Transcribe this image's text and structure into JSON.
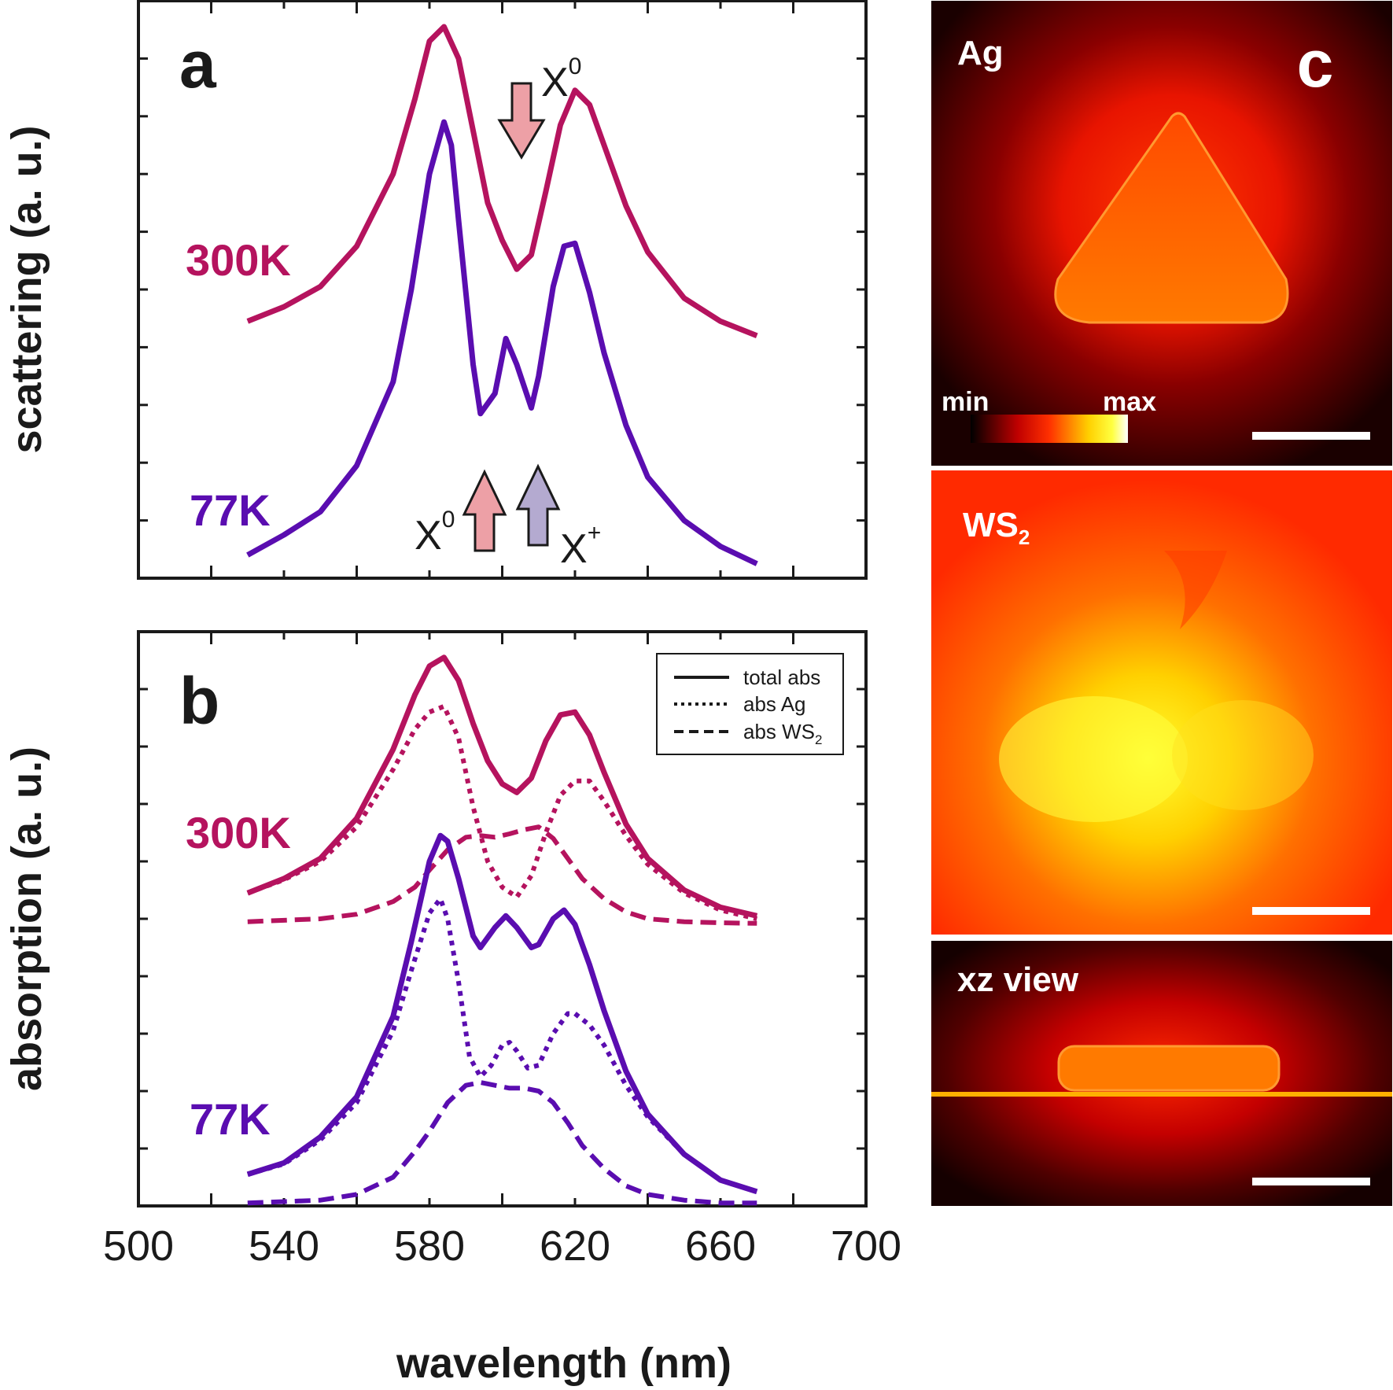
{
  "colors": {
    "t300": "#b5135e",
    "t77": "#5a0db0",
    "x0_arrow": "#eda0a6",
    "xplus_arrow": "#b4aad0",
    "frame": "#1a1a1a"
  },
  "panels": {
    "a": {
      "letter": "a",
      "ylabel": "scattering (a. u.)",
      "label_300": "300K",
      "label_77": "77K",
      "annotations": [
        {
          "text": "X",
          "sup": "0",
          "x": 604,
          "direction": "down",
          "color": "x0_arrow",
          "target": "300K dip"
        },
        {
          "text": "X",
          "sup": "0",
          "x": 596,
          "direction": "up",
          "color": "x0_arrow",
          "target": "77K dip"
        },
        {
          "text": "X",
          "sup": "+",
          "x": 609,
          "direction": "up",
          "color": "xplus_arrow",
          "target": "77K dip"
        }
      ]
    },
    "b": {
      "letter": "b",
      "ylabel": "absorption (a. u.)",
      "label_300": "300K",
      "label_77": "77K",
      "legend": [
        {
          "label": "total abs",
          "style": "solid"
        },
        {
          "label": "abs Ag",
          "style": "dotted"
        },
        {
          "label": "abs WS",
          "sub": "2",
          "style": "dashed"
        }
      ]
    },
    "c": {
      "letter": "c",
      "maps": [
        {
          "label": "Ag",
          "sub": "",
          "icon": "triangle-nanoprism-field-map"
        },
        {
          "label": "WS",
          "sub": "2",
          "icon": "ws2-field-map"
        },
        {
          "label": "xz view",
          "sub": "",
          "icon": "cross-section-field-map"
        }
      ],
      "colorbar": {
        "min": "min",
        "max": "max"
      }
    }
  },
  "xaxis": {
    "label": "wavelength (nm)",
    "ticks": [
      "500",
      "540",
      "580",
      "620",
      "660",
      "700"
    ]
  },
  "chart_data": [
    {
      "type": "line",
      "panel": "a",
      "ylabel": "scattering (a. u.)",
      "xlabel": "wavelength (nm)",
      "xlim": [
        500,
        700
      ],
      "ylim": [
        0,
        10
      ],
      "series": [
        {
          "name": "300K",
          "style": "solid",
          "x": [
            530,
            540,
            550,
            560,
            570,
            576,
            580,
            584,
            588,
            592,
            596,
            600,
            604,
            608,
            612,
            616,
            620,
            624,
            628,
            634,
            640,
            650,
            660,
            670
          ],
          "y": [
            4.45,
            4.7,
            5.05,
            5.75,
            7.0,
            8.3,
            9.3,
            9.55,
            9.0,
            7.75,
            6.5,
            5.85,
            5.35,
            5.6,
            6.7,
            7.85,
            8.45,
            8.2,
            7.5,
            6.45,
            5.65,
            4.85,
            4.45,
            4.2
          ]
        },
        {
          "name": "77K",
          "style": "solid",
          "x": [
            530,
            540,
            550,
            560,
            570,
            575,
            580,
            584,
            586,
            588,
            592,
            594,
            598,
            601,
            604,
            608,
            610,
            614,
            617,
            620,
            624,
            628,
            634,
            640,
            650,
            660,
            670
          ],
          "y": [
            0.4,
            0.75,
            1.15,
            1.95,
            3.4,
            5.0,
            7.0,
            7.9,
            7.5,
            6.2,
            3.7,
            2.85,
            3.2,
            4.15,
            3.7,
            2.95,
            3.5,
            5.05,
            5.75,
            5.8,
            4.95,
            3.9,
            2.65,
            1.75,
            1.0,
            0.55,
            0.25
          ]
        }
      ]
    },
    {
      "type": "line",
      "panel": "b",
      "ylabel": "absorption (a. u.)",
      "xlabel": "wavelength (nm)",
      "xlim": [
        500,
        700
      ],
      "ylim": [
        0,
        10
      ],
      "series": [
        {
          "name": "300K total abs",
          "style": "solid",
          "x": [
            530,
            540,
            550,
            560,
            570,
            576,
            580,
            584,
            588,
            592,
            596,
            600,
            604,
            608,
            612,
            616,
            620,
            624,
            628,
            634,
            640,
            650,
            660,
            670
          ],
          "y": [
            5.45,
            5.7,
            6.05,
            6.75,
            7.95,
            8.9,
            9.4,
            9.55,
            9.15,
            8.4,
            7.75,
            7.35,
            7.2,
            7.45,
            8.1,
            8.55,
            8.6,
            8.2,
            7.55,
            6.65,
            6.05,
            5.5,
            5.2,
            5.05
          ]
        },
        {
          "name": "300K abs Ag",
          "style": "dotted",
          "x": [
            530,
            540,
            550,
            560,
            570,
            576,
            580,
            584,
            588,
            592,
            596,
            600,
            604,
            608,
            612,
            616,
            620,
            624,
            628,
            634,
            640,
            650,
            660,
            670
          ],
          "y": [
            5.45,
            5.68,
            6.0,
            6.6,
            7.6,
            8.3,
            8.6,
            8.7,
            8.15,
            6.95,
            6.0,
            5.55,
            5.38,
            5.75,
            6.5,
            7.15,
            7.4,
            7.4,
            7.05,
            6.45,
            5.95,
            5.45,
            5.15,
            5.0
          ]
        },
        {
          "name": "300K abs WS2",
          "style": "dashed",
          "x": [
            530,
            550,
            560,
            570,
            576,
            580,
            585,
            590,
            594,
            598,
            602,
            606,
            610,
            614,
            618,
            622,
            628,
            634,
            640,
            650,
            660,
            670
          ],
          "y": [
            4.95,
            5.0,
            5.08,
            5.3,
            5.55,
            5.85,
            6.2,
            6.42,
            6.45,
            6.42,
            6.48,
            6.55,
            6.6,
            6.4,
            6.05,
            5.7,
            5.35,
            5.12,
            5.0,
            4.95,
            4.93,
            4.92
          ]
        },
        {
          "name": "77K total abs",
          "style": "solid",
          "x": [
            530,
            540,
            550,
            560,
            570,
            575,
            580,
            583,
            585,
            588,
            592,
            594,
            598,
            601,
            604,
            608,
            610,
            614,
            617,
            620,
            624,
            628,
            634,
            640,
            650,
            660,
            670
          ],
          "y": [
            0.55,
            0.75,
            1.2,
            1.9,
            3.3,
            4.6,
            6.0,
            6.45,
            6.35,
            5.7,
            4.7,
            4.5,
            4.85,
            5.05,
            4.85,
            4.5,
            4.55,
            5.0,
            5.15,
            4.9,
            4.2,
            3.4,
            2.35,
            1.6,
            0.9,
            0.45,
            0.25
          ]
        },
        {
          "name": "77K abs Ag",
          "style": "dotted",
          "x": [
            530,
            540,
            550,
            560,
            570,
            575,
            580,
            583,
            585,
            588,
            591,
            594,
            597,
            600,
            602,
            604,
            607,
            610,
            614,
            618,
            620,
            624,
            628,
            634,
            640,
            650,
            660,
            670
          ],
          "y": [
            0.55,
            0.73,
            1.15,
            1.8,
            3.05,
            4.1,
            5.1,
            5.35,
            5.0,
            3.9,
            2.6,
            2.25,
            2.45,
            2.8,
            2.85,
            2.7,
            2.4,
            2.45,
            3.0,
            3.35,
            3.35,
            3.15,
            2.8,
            2.1,
            1.55,
            0.9,
            0.45,
            0.25
          ]
        },
        {
          "name": "77K abs WS2",
          "style": "dashed",
          "x": [
            530,
            550,
            560,
            570,
            576,
            580,
            585,
            590,
            594,
            598,
            602,
            606,
            610,
            614,
            618,
            622,
            628,
            634,
            640,
            650,
            660,
            670
          ],
          "y": [
            0.05,
            0.1,
            0.2,
            0.5,
            0.95,
            1.3,
            1.8,
            2.1,
            2.15,
            2.1,
            2.05,
            2.05,
            2.0,
            1.8,
            1.45,
            1.05,
            0.65,
            0.35,
            0.2,
            0.1,
            0.05,
            0.05
          ]
        }
      ]
    }
  ]
}
